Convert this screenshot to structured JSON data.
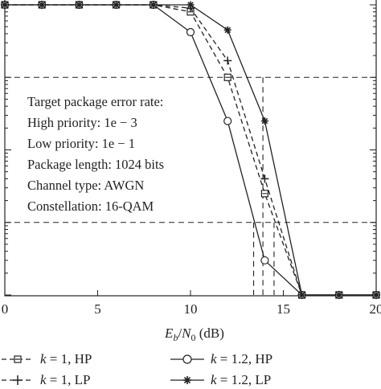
{
  "chart_data": {
    "type": "line",
    "xlabel": "E_b/N_0 (dB)",
    "xlabel_parts": {
      "E": "E",
      "b": "b",
      "slash": "/",
      "N": "N",
      "zero": "0",
      "unit": " (dB)"
    },
    "xlim": [
      0,
      20
    ],
    "x_ticks": [
      "0",
      "5",
      "10",
      "15",
      "20"
    ],
    "y_scale": "log",
    "ylim": [
      0.0001,
      1
    ],
    "series": [
      {
        "name": "k = 1, HP",
        "style": "dashed",
        "marker": "square",
        "x": [
          0,
          2,
          4,
          6,
          8,
          10,
          12,
          14,
          16,
          18,
          20
        ],
        "y": [
          1,
          1,
          1,
          1,
          1,
          0.8,
          0.1,
          0.0025,
          0.0001,
          0.0001,
          0.0001
        ]
      },
      {
        "name": "k = 1, LP",
        "style": "dashed",
        "marker": "plus",
        "x": [
          0,
          2,
          4,
          6,
          8,
          10,
          12,
          14,
          16,
          18,
          20
        ],
        "y": [
          1,
          1,
          1,
          1,
          1,
          0.9,
          0.17,
          0.004,
          0.0001,
          0.0001,
          0.0001
        ]
      },
      {
        "name": "k = 1.2, HP",
        "style": "solid",
        "marker": "circle",
        "x": [
          0,
          2,
          4,
          6,
          8,
          10,
          12,
          14,
          16,
          18,
          20
        ],
        "y": [
          1,
          1,
          1,
          1,
          1,
          0.42,
          0.025,
          0.0003,
          0.0001,
          0.0001,
          0.0001
        ]
      },
      {
        "name": "k = 1.2, LP",
        "style": "solid",
        "marker": "star",
        "x": [
          0,
          2,
          4,
          6,
          8,
          10,
          12,
          14,
          16,
          18,
          20
        ],
        "y": [
          1,
          1,
          1,
          1,
          1,
          1,
          0.45,
          0.025,
          0.0001,
          0.0001,
          0.0001
        ]
      }
    ],
    "reference_lines": {
      "horizontal": [
        0.1,
        0.001
      ],
      "vertical": [
        {
          "x": 13.4,
          "y": 0.001
        },
        {
          "x": 14.5,
          "y": 0.001
        },
        {
          "x": 13.9,
          "y": 0.1
        }
      ]
    },
    "annotation": [
      "Target package error rate:",
      "High priority: 1e − 3",
      "Low priority: 1e − 1",
      "Package length: 1024 bits",
      "Channel type: AWGN",
      "Constellation: 16-QAM"
    ],
    "colors": {
      "lines": "#222222",
      "background": "#ffffff"
    }
  },
  "legend": {
    "items": [
      {
        "label": "k = 1, HP",
        "k_var": "k",
        "rest": " = 1, HP"
      },
      {
        "label": "k = 1.2, HP",
        "k_var": "k",
        "rest": " = 1.2, HP"
      },
      {
        "label": "k = 1, LP",
        "k_var": "k",
        "rest": " = 1, LP"
      },
      {
        "label": "k = 1.2, LP",
        "k_var": "k",
        "rest": " = 1.2, LP"
      }
    ]
  }
}
